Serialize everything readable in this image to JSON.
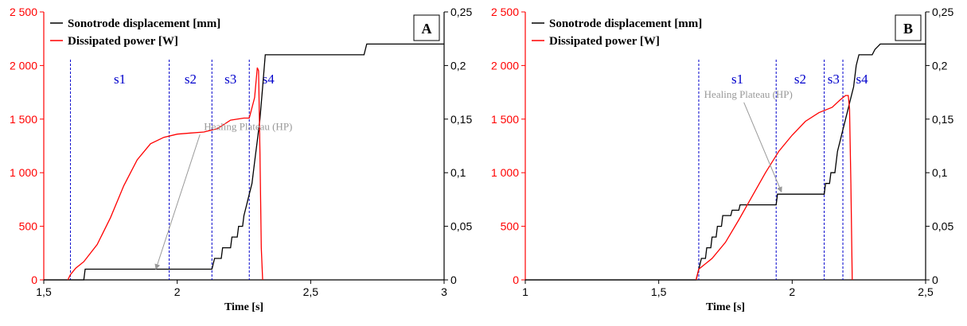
{
  "chart_data": [
    {
      "type": "line",
      "panel_label": "A",
      "xlabel": "Time [s]",
      "x_ticks": [
        "1,5",
        "2",
        "2,5",
        "3"
      ],
      "x_tick_values": [
        1.5,
        2,
        2.5,
        3
      ],
      "xlim": [
        1.5,
        3
      ],
      "ylim_left": [
        0,
        2500
      ],
      "y_ticks_left": [
        "0",
        "500",
        "1 000",
        "1 500",
        "2 000",
        "2 500"
      ],
      "y_tick_values_left": [
        0,
        500,
        1000,
        1500,
        2000,
        2500
      ],
      "ylim_right": [
        0,
        0.25
      ],
      "y_ticks_right": [
        "0",
        "0,05",
        "0,1",
        "0,15",
        "0,2",
        "0,25"
      ],
      "y_tick_values_right": [
        0,
        0.05,
        0.1,
        0.15,
        0.2,
        0.25
      ],
      "grid": false,
      "legend_position": "top-left",
      "colors": {
        "left_axis": "#ff0000",
        "displacement": "#000000",
        "power": "#ff0000",
        "stage_lines": "#0000cc",
        "annotation": "#999999"
      },
      "series": [
        {
          "name": "Sonotrode displacement [mm]",
          "axis": "right",
          "points": [
            [
              1.5,
              0
            ],
            [
              1.65,
              0
            ],
            [
              1.655,
              0.01
            ],
            [
              2.13,
              0.01
            ],
            [
              2.14,
              0.02
            ],
            [
              2.165,
              0.02
            ],
            [
              2.17,
              0.03
            ],
            [
              2.2,
              0.03
            ],
            [
              2.205,
              0.04
            ],
            [
              2.225,
              0.04
            ],
            [
              2.23,
              0.05
            ],
            [
              2.245,
              0.05
            ],
            [
              2.25,
              0.06
            ],
            [
              2.26,
              0.07
            ],
            [
              2.27,
              0.08
            ],
            [
              2.28,
              0.09
            ],
            [
              2.29,
              0.11
            ],
            [
              2.3,
              0.13
            ],
            [
              2.31,
              0.15
            ],
            [
              2.32,
              0.18
            ],
            [
              2.33,
              0.21
            ],
            [
              2.7,
              0.21
            ],
            [
              2.71,
              0.22
            ],
            [
              3.0,
              0.22
            ]
          ]
        },
        {
          "name": "Dissipated power [W]",
          "axis": "left",
          "points": [
            [
              1.59,
              0
            ],
            [
              1.6,
              50
            ],
            [
              1.62,
              110
            ],
            [
              1.65,
              170
            ],
            [
              1.7,
              330
            ],
            [
              1.75,
              580
            ],
            [
              1.8,
              880
            ],
            [
              1.85,
              1120
            ],
            [
              1.9,
              1270
            ],
            [
              1.95,
              1330
            ],
            [
              2.0,
              1360
            ],
            [
              2.05,
              1370
            ],
            [
              2.1,
              1380
            ],
            [
              2.15,
              1410
            ],
            [
              2.2,
              1490
            ],
            [
              2.25,
              1510
            ],
            [
              2.27,
              1510
            ],
            [
              2.29,
              1700
            ],
            [
              2.3,
              1980
            ],
            [
              2.305,
              1950
            ],
            [
              2.31,
              1200
            ],
            [
              2.315,
              300
            ],
            [
              2.32,
              0
            ]
          ]
        }
      ],
      "stages": [
        {
          "label": "s1",
          "x_end": 1.6
        },
        {
          "label": "s2",
          "x_end": 1.97
        },
        {
          "label": "s3",
          "x_end": 2.13
        },
        {
          "label": "s4",
          "x_end": 2.27
        }
      ],
      "annotation": {
        "text": "Healing Plateau (HP)",
        "text_at": [
          2.1,
          1400
        ],
        "arrow_to": [
          1.92,
          100
        ]
      }
    },
    {
      "type": "line",
      "panel_label": "B",
      "xlabel": "Time [s]",
      "x_ticks": [
        "1",
        "1,5",
        "2",
        "2,5"
      ],
      "x_tick_values": [
        1,
        1.5,
        2,
        2.5
      ],
      "xlim": [
        1,
        2.5
      ],
      "ylim_left": [
        0,
        2500
      ],
      "y_ticks_left": [
        "0",
        "500",
        "1 000",
        "1 500",
        "2 000",
        "2 500"
      ],
      "y_tick_values_left": [
        0,
        500,
        1000,
        1500,
        2000,
        2500
      ],
      "ylim_right": [
        0,
        0.25
      ],
      "y_ticks_right": [
        "0",
        "0,05",
        "0,1",
        "0,15",
        "0,2",
        "0,25"
      ],
      "y_tick_values_right": [
        0,
        0.05,
        0.1,
        0.15,
        0.2,
        0.25
      ],
      "grid": false,
      "legend_position": "top-left",
      "colors": {
        "left_axis": "#ff0000",
        "displacement": "#000000",
        "power": "#ff0000",
        "stage_lines": "#0000cc",
        "annotation": "#999999"
      },
      "series": [
        {
          "name": "Sonotrode displacement [mm]",
          "axis": "right",
          "points": [
            [
              1.0,
              0
            ],
            [
              1.64,
              0
            ],
            [
              1.645,
              0.005
            ],
            [
              1.65,
              0.01
            ],
            [
              1.66,
              0.02
            ],
            [
              1.675,
              0.02
            ],
            [
              1.68,
              0.03
            ],
            [
              1.695,
              0.03
            ],
            [
              1.7,
              0.04
            ],
            [
              1.715,
              0.04
            ],
            [
              1.72,
              0.05
            ],
            [
              1.735,
              0.05
            ],
            [
              1.74,
              0.06
            ],
            [
              1.77,
              0.06
            ],
            [
              1.775,
              0.065
            ],
            [
              1.8,
              0.065
            ],
            [
              1.805,
              0.07
            ],
            [
              1.94,
              0.07
            ],
            [
              1.945,
              0.08
            ],
            [
              2.12,
              0.08
            ],
            [
              2.125,
              0.09
            ],
            [
              2.14,
              0.09
            ],
            [
              2.145,
              0.1
            ],
            [
              2.16,
              0.1
            ],
            [
              2.17,
              0.12
            ],
            [
              2.18,
              0.13
            ],
            [
              2.19,
              0.14
            ],
            [
              2.2,
              0.15
            ],
            [
              2.21,
              0.16
            ],
            [
              2.22,
              0.17
            ],
            [
              2.23,
              0.18
            ],
            [
              2.24,
              0.2
            ],
            [
              2.25,
              0.21
            ],
            [
              2.3,
              0.21
            ],
            [
              2.31,
              0.215
            ],
            [
              2.33,
              0.22
            ],
            [
              2.5,
              0.22
            ]
          ]
        },
        {
          "name": "Dissipated power [W]",
          "axis": "left",
          "points": [
            [
              1.64,
              0
            ],
            [
              1.65,
              100
            ],
            [
              1.7,
              200
            ],
            [
              1.75,
              350
            ],
            [
              1.8,
              560
            ],
            [
              1.85,
              780
            ],
            [
              1.9,
              1000
            ],
            [
              1.95,
              1200
            ],
            [
              2.0,
              1350
            ],
            [
              2.05,
              1480
            ],
            [
              2.1,
              1560
            ],
            [
              2.15,
              1610
            ],
            [
              2.18,
              1680
            ],
            [
              2.2,
              1720
            ],
            [
              2.21,
              1720
            ],
            [
              2.215,
              1600
            ],
            [
              2.22,
              900
            ],
            [
              2.225,
              0
            ]
          ]
        }
      ],
      "stages": [
        {
          "label": "s1",
          "x_end": 1.65
        },
        {
          "label": "s2",
          "x_end": 1.94
        },
        {
          "label": "s3",
          "x_end": 2.12
        },
        {
          "label": "s4",
          "x_end": 2.19
        }
      ],
      "annotation": {
        "text": "Healing Plateau (HP)",
        "text_at": [
          1.67,
          1700
        ],
        "arrow_to": [
          1.96,
          820
        ]
      }
    }
  ]
}
